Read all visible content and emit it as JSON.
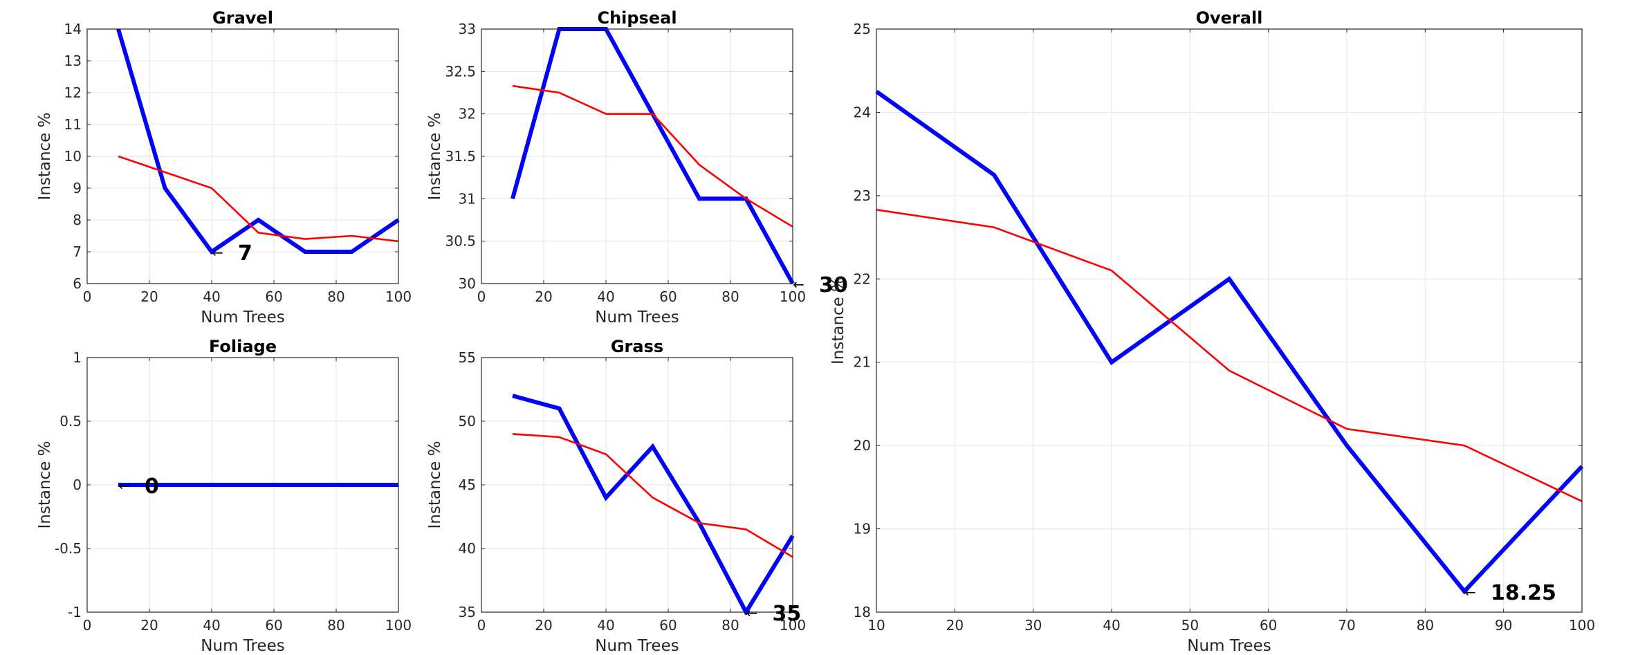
{
  "chart_data": [
    {
      "id": "gravel",
      "type": "line",
      "title": "Gravel",
      "xlabel": "Num Trees",
      "ylabel": "Instance %",
      "xlim": [
        0,
        100
      ],
      "ylim": [
        6,
        14
      ],
      "xticks": [
        0,
        20,
        40,
        60,
        80,
        100
      ],
      "yticks": [
        6,
        7,
        8,
        9,
        10,
        11,
        12,
        13,
        14
      ],
      "grid": true,
      "series": [
        {
          "color": "#0000ff",
          "style": "thick",
          "x": [
            10,
            25,
            40,
            55,
            70,
            85,
            100
          ],
          "y": [
            14,
            9,
            7,
            8,
            7,
            7,
            8
          ]
        },
        {
          "color": "#ff0000",
          "style": "thin",
          "x": [
            10,
            25,
            40,
            55,
            70,
            85,
            100
          ],
          "y": [
            10,
            9.5,
            9,
            7.6,
            7.4,
            7.5,
            7.33
          ]
        }
      ],
      "annotation": {
        "x": 40,
        "y": 7,
        "arrow": "←",
        "text": "7"
      }
    },
    {
      "id": "chipseal",
      "type": "line",
      "title": "Chipseal",
      "xlabel": "Num Trees",
      "ylabel": "Instance %",
      "xlim": [
        0,
        100
      ],
      "ylim": [
        30,
        33
      ],
      "xticks": [
        0,
        20,
        40,
        60,
        80,
        100
      ],
      "yticks": [
        30,
        30.5,
        31,
        31.5,
        32,
        32.5,
        33
      ],
      "grid": true,
      "series": [
        {
          "color": "#0000ff",
          "style": "thick",
          "x": [
            10,
            25,
            40,
            55,
            70,
            85,
            100
          ],
          "y": [
            31,
            33,
            33,
            32,
            31,
            31,
            30
          ]
        },
        {
          "color": "#ff0000",
          "style": "thin",
          "x": [
            10,
            25,
            40,
            55,
            70,
            85,
            100
          ],
          "y": [
            32.33,
            32.25,
            32,
            32,
            31.4,
            31,
            30.67
          ]
        }
      ],
      "annotation": {
        "x": 100,
        "y": 30,
        "arrow": "←",
        "text": "30"
      }
    },
    {
      "id": "foliage",
      "type": "line",
      "title": "Foliage",
      "xlabel": "Num Trees",
      "ylabel": "Instance %",
      "xlim": [
        0,
        100
      ],
      "ylim": [
        -1,
        1
      ],
      "xticks": [
        0,
        20,
        40,
        60,
        80,
        100
      ],
      "yticks": [
        -1,
        -0.5,
        0,
        0.5,
        1
      ],
      "grid": true,
      "series": [
        {
          "color": "#ff0000",
          "style": "thin",
          "x": [
            10,
            25,
            40,
            55,
            70,
            85,
            100
          ],
          "y": [
            0,
            0,
            0,
            0,
            0,
            0,
            0
          ]
        },
        {
          "color": "#0000ff",
          "style": "thick",
          "x": [
            10,
            25,
            40,
            55,
            70,
            85,
            100
          ],
          "y": [
            0,
            0,
            0,
            0,
            0,
            0,
            0
          ]
        }
      ],
      "annotation": {
        "x": 10,
        "y": 0,
        "arrow": "←",
        "text": "0"
      }
    },
    {
      "id": "grass",
      "type": "line",
      "title": "Grass",
      "xlabel": "Num Trees",
      "ylabel": "Instance %",
      "xlim": [
        0,
        100
      ],
      "ylim": [
        35,
        55
      ],
      "xticks": [
        0,
        20,
        40,
        60,
        80,
        100
      ],
      "yticks": [
        35,
        40,
        45,
        50,
        55
      ],
      "grid": true,
      "series": [
        {
          "color": "#0000ff",
          "style": "thick",
          "x": [
            10,
            25,
            40,
            55,
            70,
            85,
            100
          ],
          "y": [
            52,
            51,
            44,
            48,
            42,
            35,
            41
          ]
        },
        {
          "color": "#ff0000",
          "style": "thin",
          "x": [
            10,
            25,
            40,
            55,
            70,
            85,
            100
          ],
          "y": [
            49,
            48.75,
            47.4,
            44,
            42,
            41.5,
            39.33
          ]
        }
      ],
      "annotation": {
        "x": 85,
        "y": 35,
        "arrow": "←",
        "text": "35"
      }
    },
    {
      "id": "overall",
      "type": "line",
      "title": "Overall",
      "xlabel": "Num Trees",
      "ylabel": "Instance %",
      "xlim": [
        10,
        100
      ],
      "ylim": [
        18,
        25
      ],
      "xticks": [
        10,
        20,
        30,
        40,
        50,
        60,
        70,
        80,
        90,
        100
      ],
      "yticks": [
        18,
        19,
        20,
        21,
        22,
        23,
        24,
        25
      ],
      "grid": true,
      "series": [
        {
          "color": "#0000ff",
          "style": "thick",
          "x": [
            10,
            25,
            40,
            55,
            70,
            85,
            100
          ],
          "y": [
            24.25,
            23.25,
            21,
            22,
            20,
            18.25,
            19.75
          ]
        },
        {
          "color": "#ff0000",
          "style": "thin",
          "x": [
            10,
            25,
            40,
            55,
            70,
            85,
            100
          ],
          "y": [
            22.83,
            22.62,
            22.1,
            20.9,
            20.2,
            20,
            19.33
          ]
        }
      ],
      "annotation": {
        "x": 85,
        "y": 18.25,
        "arrow": "←",
        "text": "18.25"
      }
    }
  ]
}
